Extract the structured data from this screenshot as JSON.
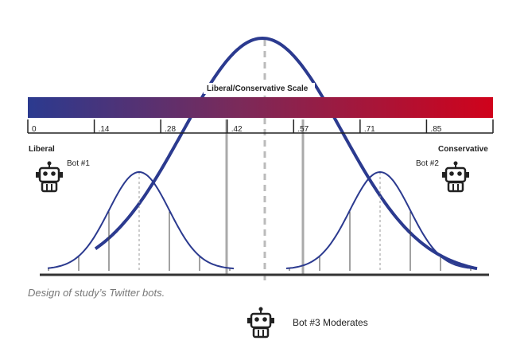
{
  "scale": {
    "title": "Liberal/Conservative Scale",
    "ticks": [
      "0",
      ".14",
      ".28",
      ".42",
      ".57",
      ".71",
      ".85"
    ],
    "left_label": "Liberal",
    "right_label": "Conservative"
  },
  "bots": [
    {
      "label": "Bot #1"
    },
    {
      "label": "Bot #2"
    },
    {
      "label": "Bot #3 Moderates"
    }
  ],
  "caption": "Design of study’s Twitter bots."
}
